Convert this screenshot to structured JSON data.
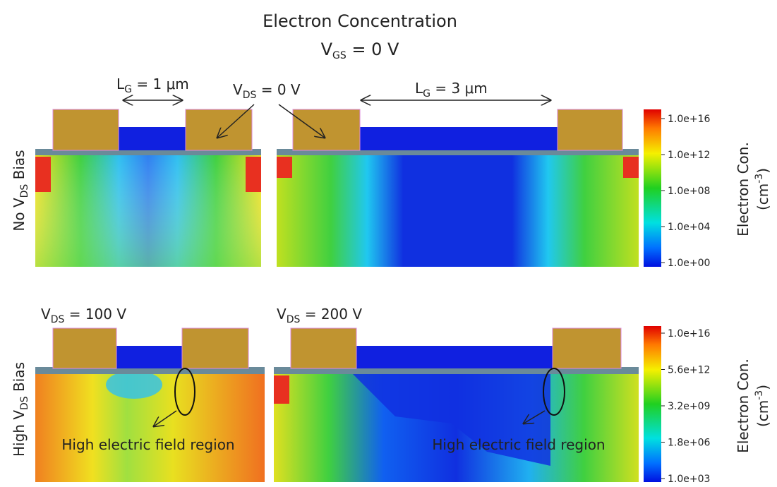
{
  "title": {
    "line1": "Electron Concentration",
    "line2": {
      "main": "V",
      "sub": "GS",
      "rest": " = 0 V"
    }
  },
  "top_row": {
    "row_label": {
      "main": "No V",
      "sub": "DS",
      "rest": " Bias"
    },
    "gate_length_left": {
      "main": "L",
      "sub": "G",
      "rest": " = 1 μm"
    },
    "gate_length_right": {
      "main": "L",
      "sub": "G",
      "rest": " = 3 μm"
    },
    "vds_label": {
      "main": "V",
      "sub": "DS",
      "rest": " = 0 V"
    },
    "colorbar_ticks": [
      "1.0e+16",
      "1.0e+12",
      "1.0e+08",
      "1.0e+04",
      "1.0e+00"
    ]
  },
  "bottom_row": {
    "row_label": {
      "main": "High V",
      "sub": "DS",
      "rest": " Bias"
    },
    "vds_left": {
      "main": "V",
      "sub": "DS",
      "rest": " = 100 V"
    },
    "vds_right": {
      "main": "V",
      "sub": "DS",
      "rest": " = 200 V"
    },
    "annotation_left": "High electric field region",
    "annotation_right": "High electric field region",
    "colorbar_ticks": [
      "1.0e+16",
      "5.6e+12",
      "3.2e+09",
      "1.8e+06",
      "1.0e+03"
    ]
  },
  "colorbar_label": {
    "main": "Electron Con.",
    "unit_pre": "(cm",
    "unit_sup": "-3",
    "unit_post": ")"
  }
}
